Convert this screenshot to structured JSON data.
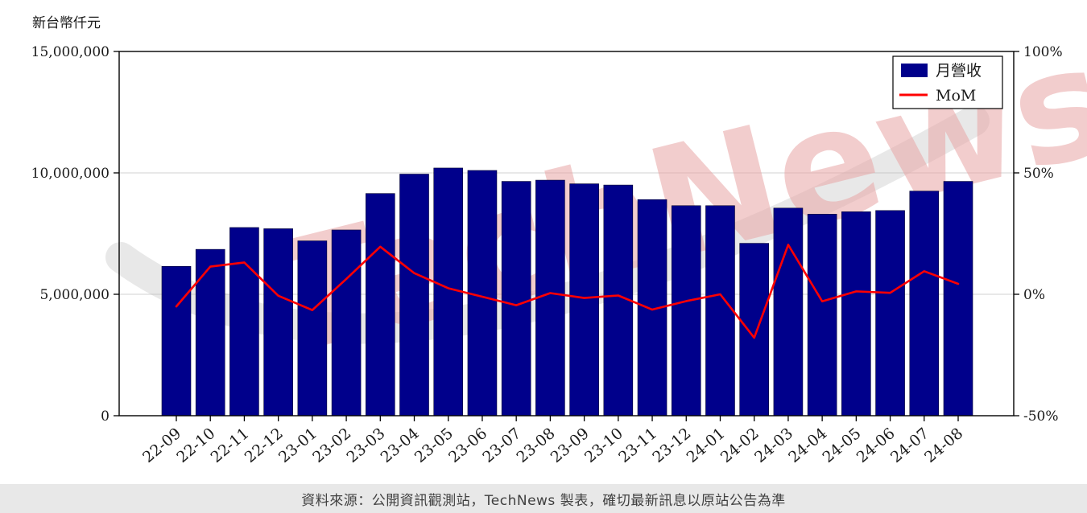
{
  "header": {
    "unit_label": "新台幣仟元"
  },
  "chart_data": {
    "type": "bar",
    "title": "",
    "unit_label": "新台幣仟元",
    "watermark": "TechNews",
    "categories": [
      "22-09",
      "22-10",
      "22-11",
      "22-12",
      "23-01",
      "23-02",
      "23-03",
      "23-04",
      "23-05",
      "23-06",
      "23-07",
      "23-08",
      "23-09",
      "23-10",
      "23-11",
      "23-12",
      "24-01",
      "24-02",
      "24-03",
      "24-04",
      "24-05",
      "24-06",
      "24-07",
      "24-08"
    ],
    "series": [
      {
        "name": "月營收",
        "type": "bar",
        "axis": "left",
        "color": "#00008B",
        "values": [
          6150000,
          6850000,
          7750000,
          7700000,
          7200000,
          7650000,
          9150000,
          9950000,
          10200000,
          10100000,
          9650000,
          9700000,
          9550000,
          9500000,
          8900000,
          8650000,
          8650000,
          7100000,
          8550000,
          8300000,
          8400000,
          8450000,
          9250000,
          9650000
        ]
      },
      {
        "name": "MoM",
        "type": "line",
        "axis": "right",
        "color": "#ff0000",
        "values": [
          -5.0,
          11.4,
          13.1,
          -0.6,
          -6.5,
          6.3,
          19.6,
          8.7,
          2.5,
          -1.0,
          -4.5,
          0.5,
          -1.5,
          -0.5,
          -6.3,
          -2.8,
          0.0,
          -17.9,
          20.4,
          -2.9,
          1.2,
          0.6,
          9.5,
          4.3
        ]
      }
    ],
    "left_axis": {
      "range": [
        0,
        15000000
      ],
      "ticks": [
        0,
        5000000,
        10000000,
        15000000
      ],
      "tick_labels": [
        "0",
        "5,000,000",
        "10,000,000",
        "15,000,000"
      ]
    },
    "right_axis": {
      "range": [
        -50,
        100
      ],
      "ticks": [
        -50,
        0,
        50,
        100
      ],
      "tick_labels": [
        "-50%",
        "0%",
        "50%",
        "100%"
      ]
    },
    "legend": {
      "position": "top-right",
      "entries": [
        "月營收",
        "MoM"
      ]
    },
    "grid": true
  },
  "footer": {
    "text": "資料來源：公開資訊觀測站，TechNews 製表，確切最新訊息以原站公告為準"
  }
}
